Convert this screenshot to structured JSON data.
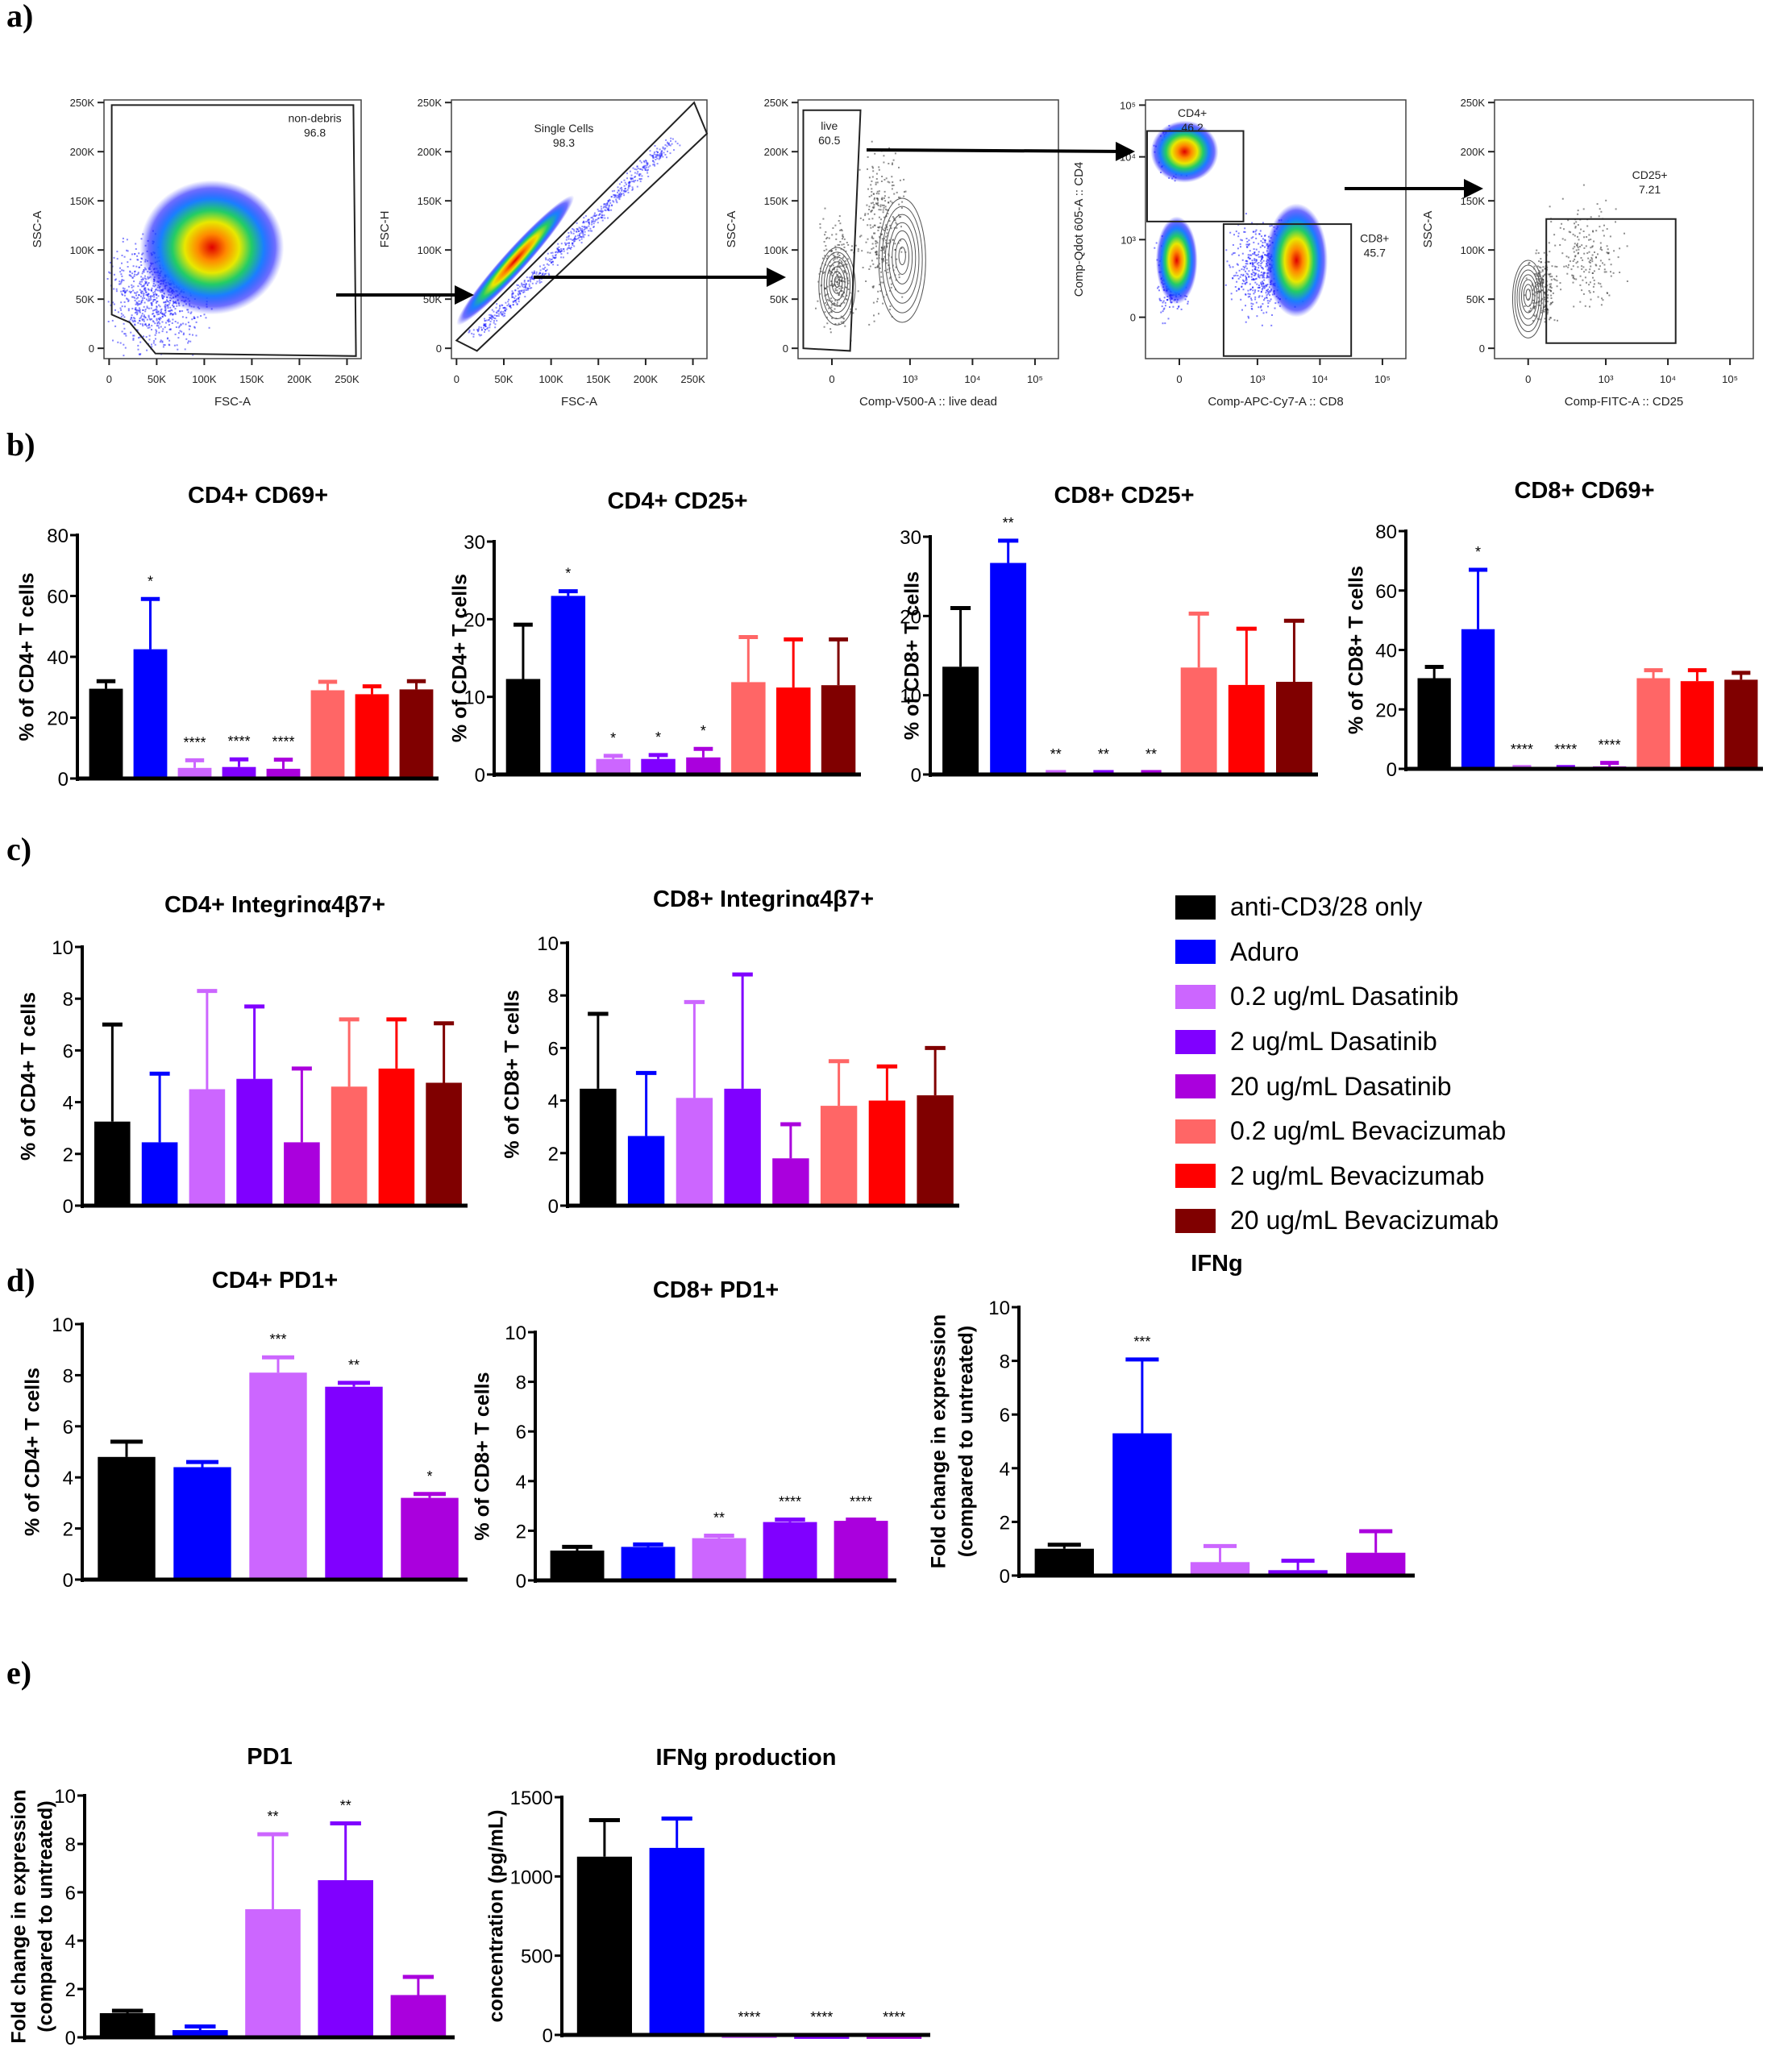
{
  "panel_labels": [
    "a)",
    "b)",
    "c)",
    "d)",
    "e)"
  ],
  "colors": {
    "anti-CD3/28 only": "#000000",
    "Aduro": "#0000FF",
    "0.2 ug/mL Dasatinib": "#CC66FF",
    "2 ug/mL Dasatinib": "#8000FF",
    "20 ug/mL Dasatinib": "#AA00DD",
    "0.2 ug/mL Bevacizumab": "#FF6666",
    "2 ug/mL Bevacizumab": "#FF0000",
    "20 ug/mL Bevacizumab": "#800000"
  },
  "legend": {
    "placement": "right of panel c",
    "items": [
      {
        "label": "anti-CD3/28 only",
        "color": "#000000"
      },
      {
        "label": "Aduro",
        "color": "#0000FF"
      },
      {
        "label": "0.2 ug/mL Dasatinib",
        "color": "#CC66FF"
      },
      {
        "label": "2 ug/mL Dasatinib",
        "color": "#8000FF"
      },
      {
        "label": "20 ug/mL Dasatinib",
        "color": "#AA00DD"
      },
      {
        "label": "0.2 ug/mL Bevacizumab",
        "color": "#FF6666"
      },
      {
        "label": "2 ug/mL Bevacizumab",
        "color": "#FF0000"
      },
      {
        "label": "20 ug/mL Bevacizumab",
        "color": "#800000"
      }
    ]
  },
  "panel_a": {
    "plots": [
      {
        "xlabel": "FSC-A",
        "ylabel": "SSC-A",
        "gate_name": "non-debris",
        "gate_value": "96.8",
        "xticks": [
          "0",
          "50K",
          "100K",
          "150K",
          "200K",
          "250K"
        ],
        "yticks": [
          "0",
          "50K",
          "100K",
          "150K",
          "200K",
          "250K"
        ]
      },
      {
        "xlabel": "FSC-A",
        "ylabel": "FSC-H",
        "gate_name": "Single Cells",
        "gate_value": "98.3",
        "xticks": [
          "0",
          "50K",
          "100K",
          "150K",
          "200K",
          "250K"
        ],
        "yticks": [
          "0",
          "50K",
          "100K",
          "150K",
          "200K",
          "250K"
        ]
      },
      {
        "xlabel": "Comp-V500-A :: live dead",
        "ylabel": "SSC-A",
        "gate_name": "live",
        "gate_value": "60.5",
        "xticks": [
          "0",
          "10³",
          "10⁴",
          "10⁵"
        ],
        "yticks": [
          "0",
          "50K",
          "100K",
          "150K",
          "200K",
          "250K"
        ]
      },
      {
        "xlabel": "Comp-APC-Cy7-A :: CD8",
        "ylabel": "Comp-Qdot 605-A :: CD4",
        "gate_name": "CD4+",
        "gate_value": "46.2",
        "gate2_name": "CD8+",
        "gate2_value": "45.7",
        "xticks": [
          "0",
          "10³",
          "10⁴",
          "10⁵"
        ],
        "yticks": [
          "0",
          "10³",
          "10⁴",
          "10⁵"
        ]
      },
      {
        "xlabel": "Comp-FITC-A :: CD25",
        "ylabel": "SSC-A",
        "gate_name": "CD25+",
        "gate_value": "7.21",
        "xticks": [
          "0",
          "10³",
          "10⁴",
          "10⁵"
        ],
        "yticks": [
          "0",
          "50K",
          "100K",
          "150K",
          "200K",
          "250K"
        ]
      }
    ]
  },
  "chart_data": [
    {
      "panel": "b",
      "type": "bar",
      "title": "CD4+ CD69+",
      "ylabel": "% of CD4+ T cells",
      "ylim": [
        0,
        80
      ],
      "yticks": [
        0,
        20,
        40,
        60,
        80
      ],
      "categories": [
        "anti-CD3/28 only",
        "Aduro",
        "0.2 ug/mL Dasatinib",
        "2 ug/mL Dasatinib",
        "20 ug/mL Dasatinib",
        "0.2 ug/mL Bevacizumab",
        "2 ug/mL Bevacizumab",
        "20 ug/mL Bevacizumab"
      ],
      "values": [
        29.5,
        42.5,
        3.5,
        3.8,
        3.2,
        29.0,
        27.7,
        29.3
      ],
      "error_upper": [
        32.0,
        59.0,
        6.0,
        6.3,
        6.2,
        31.8,
        30.3,
        32.0
      ],
      "significance": [
        "",
        "*",
        "****",
        "****",
        "****",
        "",
        "",
        ""
      ]
    },
    {
      "panel": "b",
      "type": "bar",
      "title": "CD4+ CD25+",
      "ylabel": "% of CD4+ T cells",
      "ylim": [
        0,
        30
      ],
      "yticks": [
        0,
        10,
        20,
        30
      ],
      "categories": [
        "anti-CD3/28 only",
        "Aduro",
        "0.2 ug/mL Dasatinib",
        "2 ug/mL Dasatinib",
        "20 ug/mL Dasatinib",
        "0.2 ug/mL Bevacizumab",
        "2 ug/mL Bevacizumab",
        "20 ug/mL Bevacizumab"
      ],
      "values": [
        12.3,
        23.0,
        2.0,
        2.0,
        2.2,
        11.9,
        11.2,
        11.5
      ],
      "error_upper": [
        19.3,
        23.6,
        2.4,
        2.5,
        3.3,
        17.7,
        17.4,
        17.4
      ],
      "significance": [
        "",
        "*",
        "*",
        "*",
        "*",
        "",
        "",
        ""
      ]
    },
    {
      "panel": "b",
      "type": "bar",
      "title": "CD8+ CD25+",
      "ylabel": "% of CD8+ T cells",
      "ylim": [
        0,
        30
      ],
      "yticks": [
        0,
        10,
        20,
        30
      ],
      "categories": [
        "anti-CD3/28 only",
        "Aduro",
        "0.2 ug/mL Dasatinib",
        "2 ug/mL Dasatinib",
        "20 ug/mL Dasatinib",
        "0.2 ug/mL Bevacizumab",
        "2 ug/mL Bevacizumab",
        "20 ug/mL Bevacizumab"
      ],
      "values": [
        13.6,
        26.7,
        0.2,
        0.2,
        0.2,
        13.5,
        11.3,
        11.7
      ],
      "error_upper": [
        21.0,
        29.5,
        0.3,
        0.3,
        0.3,
        20.3,
        18.4,
        19.4
      ],
      "significance": [
        "",
        "**",
        "**",
        "**",
        "**",
        "",
        "",
        ""
      ]
    },
    {
      "panel": "b",
      "type": "bar",
      "title": "CD8+ CD69+",
      "ylabel": "% of CD8+ T cells",
      "ylim": [
        0,
        80
      ],
      "yticks": [
        0,
        20,
        40,
        60,
        80
      ],
      "categories": [
        "anti-CD3/28 only",
        "Aduro",
        "0.2 ug/mL Dasatinib",
        "2 ug/mL Dasatinib",
        "20 ug/mL Dasatinib",
        "0.2 ug/mL Bevacizumab",
        "2 ug/mL Bevacizumab",
        "20 ug/mL Bevacizumab"
      ],
      "values": [
        30.5,
        47.0,
        0.5,
        0.5,
        0.8,
        30.5,
        29.5,
        30.0
      ],
      "error_upper": [
        34.3,
        67.0,
        0.6,
        0.6,
        2.0,
        33.2,
        33.2,
        32.3
      ],
      "significance": [
        "",
        "*",
        "****",
        "****",
        "****",
        "",
        "",
        ""
      ]
    },
    {
      "panel": "c",
      "type": "bar",
      "title": "CD4+ Integrinα4β7+",
      "ylabel": "% of CD4+ T cells",
      "ylim": [
        0,
        10
      ],
      "yticks": [
        0,
        2,
        4,
        6,
        8,
        10
      ],
      "categories": [
        "anti-CD3/28 only",
        "Aduro",
        "0.2 ug/mL Dasatinib",
        "2 ug/mL Dasatinib",
        "20 ug/mL Dasatinib",
        "0.2 ug/mL Bevacizumab",
        "2 ug/mL Bevacizumab",
        "20 ug/mL Bevacizumab"
      ],
      "values": [
        3.25,
        2.45,
        4.5,
        4.9,
        2.45,
        4.6,
        5.3,
        4.75
      ],
      "error_upper": [
        7.0,
        5.1,
        8.3,
        7.7,
        5.3,
        7.2,
        7.2,
        7.05
      ],
      "significance": [
        "",
        "",
        "",
        "",
        "",
        "",
        "",
        ""
      ]
    },
    {
      "panel": "c",
      "type": "bar",
      "title": "CD8+ Integrinα4β7+",
      "ylabel": "% of CD8+ T cells",
      "ylim": [
        0,
        10
      ],
      "yticks": [
        0,
        2,
        4,
        6,
        8,
        10
      ],
      "categories": [
        "anti-CD3/28 only",
        "Aduro",
        "0.2 ug/mL Dasatinib",
        "2 ug/mL Dasatinib",
        "20 ug/mL Dasatinib",
        "0.2 ug/mL Bevacizumab",
        "2 ug/mL Bevacizumab",
        "20 ug/mL Bevacizumab"
      ],
      "values": [
        4.45,
        2.65,
        4.1,
        4.45,
        1.8,
        3.8,
        4.0,
        4.2
      ],
      "error_upper": [
        7.3,
        5.05,
        7.75,
        8.8,
        3.1,
        5.5,
        5.3,
        6.0
      ],
      "significance": [
        "",
        "",
        "",
        "",
        "",
        "",
        "",
        ""
      ]
    },
    {
      "panel": "d",
      "type": "bar",
      "title": "CD4+ PD1+",
      "ylabel": "% of CD4+ T cells",
      "ylim": [
        0,
        10
      ],
      "yticks": [
        0,
        2,
        4,
        6,
        8,
        10
      ],
      "categories": [
        "anti-CD3/28 only",
        "Aduro",
        "0.2 ug/mL Dasatinib",
        "2 ug/mL Dasatinib",
        "20 ug/mL Dasatinib"
      ],
      "values": [
        4.8,
        4.4,
        8.1,
        7.55,
        3.2
      ],
      "error_upper": [
        5.4,
        4.6,
        8.7,
        7.7,
        3.35
      ],
      "significance": [
        "",
        "",
        "***",
        "**",
        "*"
      ]
    },
    {
      "panel": "d",
      "type": "bar",
      "title": "CD8+ PD1+",
      "ylabel": "% of CD8+ T cells",
      "ylim": [
        0,
        10
      ],
      "yticks": [
        0,
        2,
        4,
        6,
        8,
        10
      ],
      "categories": [
        "anti-CD3/28 only",
        "Aduro",
        "0.2 ug/mL Dasatinib",
        "2 ug/mL Dasatinib",
        "20 ug/mL Dasatinib"
      ],
      "values": [
        1.2,
        1.35,
        1.7,
        2.35,
        2.4
      ],
      "error_upper": [
        1.35,
        1.45,
        1.8,
        2.45,
        2.45
      ],
      "significance": [
        "",
        "",
        "**",
        "****",
        "****"
      ]
    },
    {
      "panel": "d",
      "type": "bar",
      "title": "IFNg",
      "ylabel": "Fold change in expression",
      "ylabel2": "(compared to untreated)",
      "ylim": [
        0,
        10
      ],
      "yticks": [
        0,
        2,
        4,
        6,
        8,
        10
      ],
      "categories": [
        "anti-CD3/28 only",
        "Aduro",
        "0.2 ug/mL Dasatinib",
        "2 ug/mL Dasatinib",
        "20 ug/mL Dasatinib"
      ],
      "values": [
        1.0,
        5.3,
        0.5,
        0.2,
        0.85
      ],
      "error_upper": [
        1.15,
        8.05,
        1.1,
        0.55,
        1.65
      ],
      "significance": [
        "",
        "***",
        "",
        "",
        ""
      ]
    },
    {
      "panel": "e",
      "type": "bar",
      "title": "PD1",
      "ylabel": "Fold change in expression",
      "ylabel2": "(compared to untreated)",
      "ylim": [
        0,
        10
      ],
      "yticks": [
        0,
        2,
        4,
        6,
        8,
        10
      ],
      "categories": [
        "anti-CD3/28 only",
        "Aduro",
        "0.2 ug/mL Dasatinib",
        "2 ug/mL Dasatinib",
        "20 ug/mL Dasatinib"
      ],
      "values": [
        1.0,
        0.3,
        5.3,
        6.5,
        1.75
      ],
      "error_upper": [
        1.1,
        0.45,
        8.4,
        8.85,
        2.5
      ],
      "significance": [
        "",
        "",
        "**",
        "**",
        ""
      ]
    },
    {
      "panel": "e",
      "type": "bar",
      "title": "IFNg production",
      "ylabel": "concentration (pg/mL)",
      "ylim": [
        0,
        1500
      ],
      "yticks": [
        0,
        500,
        1000,
        1500
      ],
      "categories": [
        "anti-CD3/28 only",
        "Aduro",
        "0.2 ug/mL Dasatinib",
        "2 ug/mL Dasatinib",
        "20 ug/mL Dasatinib"
      ],
      "values": [
        1125,
        1180,
        -20,
        -25,
        -25
      ],
      "error_upper": [
        1355,
        1365,
        null,
        null,
        null
      ],
      "significance": [
        "",
        "",
        "****",
        "****",
        "****"
      ]
    }
  ]
}
